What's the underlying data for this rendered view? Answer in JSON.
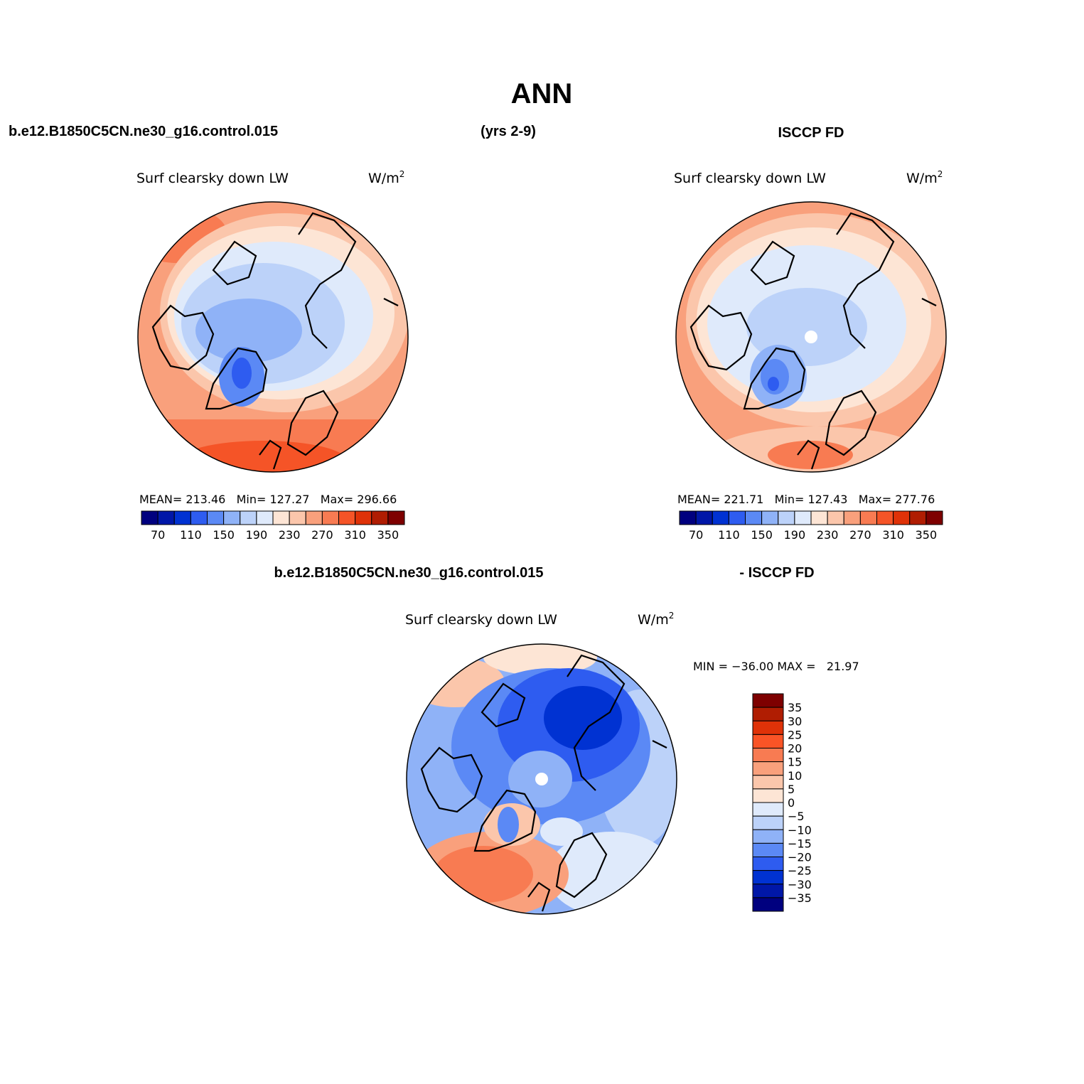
{
  "figure": {
    "title": "ANN",
    "case_name": "b.e12.B1850C5CN.ne30_g16.control.015",
    "years": "(yrs 2-9)",
    "obs_name": "ISCCP FD",
    "diff_case_name": "b.e12.B1850C5CN.ne30_g16.control.015",
    "diff_obs_name": "- ISCCP FD"
  },
  "panels": [
    {
      "id": "model",
      "variable": "Surf clearsky down LW",
      "units": "W/m",
      "units_sup": "2",
      "stats": "MEAN= 213.46   Min= 127.27   Max= 296.66"
    },
    {
      "id": "obs",
      "variable": "Surf clearsky down LW",
      "units": "W/m",
      "units_sup": "2",
      "stats": "MEAN= 221.71   Min= 127.43   Max= 277.76"
    },
    {
      "id": "diff",
      "variable": "Surf clearsky down LW",
      "units": "W/m",
      "units_sup": "2",
      "stats": "MIN = −36.00 MAX =   21.97"
    }
  ],
  "abs_colorbar": {
    "colors": [
      "#00007f",
      "#0017a8",
      "#0032d2",
      "#2e5cf0",
      "#5b89f5",
      "#8fb2f7",
      "#bcd2f9",
      "#dfeafb",
      "#fde5d5",
      "#fbc6ab",
      "#f9a07c",
      "#f87b52",
      "#f55427",
      "#df3208",
      "#b01d02",
      "#7e0000"
    ],
    "tick_labels": [
      "70",
      "110",
      "150",
      "190",
      "230",
      "270",
      "310",
      "350"
    ]
  },
  "diff_colorbar": {
    "colors": [
      "#7e0000",
      "#b01d02",
      "#df3208",
      "#fa5426",
      "#f87b52",
      "#f9a07c",
      "#fbc6ab",
      "#fde5d5",
      "#dfeafb",
      "#bcd2f9",
      "#8fb2f7",
      "#5b89f5",
      "#2e5cf0",
      "#0032d2",
      "#0017a8",
      "#00007f"
    ],
    "tick_labels": [
      "35",
      "30",
      "25",
      "20",
      "15",
      "10",
      "5",
      "0",
      "−5",
      "−10",
      "−15",
      "−20",
      "−25",
      "−30",
      "−35"
    ]
  },
  "legend_colors": {
    "ocean_warm": "#f9a07c",
    "arctic_cold": "#bcd2f9",
    "coast": "#000000"
  }
}
